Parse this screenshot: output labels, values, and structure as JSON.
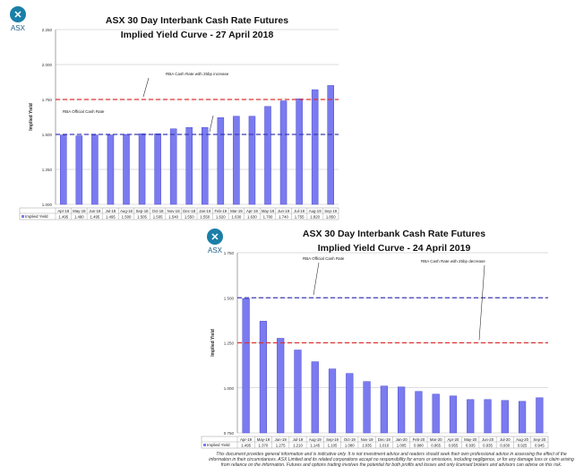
{
  "logo_text": "ASX",
  "colors": {
    "bar": "#7b7bf0",
    "bar_edge": "#4a4ad0",
    "official": "#3a3ab8",
    "alt": "#e03030"
  },
  "chart_data": [
    {
      "type": "bar",
      "title": "ASX 30 Day Interbank Cash Rate Futures",
      "subtitle": "Implied Yield Curve - 27 April 2018",
      "ylabel": "Implied Yield",
      "ylim": [
        1.0,
        2.25
      ],
      "yticks": [
        "1.000",
        "1.250",
        "1.500",
        "1.750",
        "2.000",
        "2.250"
      ],
      "legend": "Implied Yield",
      "categories": [
        "Apr-18",
        "May-18",
        "Jun-18",
        "Jul-18",
        "Aug-18",
        "Sep-18",
        "Oct-18",
        "Nov-18",
        "Dec-18",
        "Jan-19",
        "Feb-19",
        "Mar-19",
        "Apr-19",
        "May-19",
        "Jun-19",
        "Jul-19",
        "Aug-19",
        "Sep-19"
      ],
      "values": [
        1.495,
        1.49,
        1.495,
        1.495,
        1.5,
        1.505,
        1.505,
        1.54,
        1.55,
        1.55,
        1.62,
        1.63,
        1.63,
        1.7,
        1.74,
        1.755,
        1.82,
        1.85
      ],
      "labels": [
        "1.495",
        "1.490",
        "1.495",
        "1.495",
        "1.500",
        "1.505",
        "1.505",
        "1.540",
        "1.550",
        "1.550",
        "1.620",
        "1.630",
        "1.630",
        "1.700",
        "1.740",
        "1.755",
        "1.820",
        "1.850"
      ],
      "reference_lines": [
        {
          "name": "RBA Official Cash Rate",
          "value": 1.5,
          "color": "official"
        },
        {
          "name": "RBA Cash Rate with 25bp increase",
          "value": 1.75,
          "color": "alt"
        }
      ]
    },
    {
      "type": "bar",
      "title": "ASX 30 Day Interbank Cash Rate Futures",
      "subtitle": "Implied Yield Curve - 24 April 2019",
      "ylabel": "Implied Yield",
      "ylim": [
        0.75,
        1.75
      ],
      "yticks": [
        "0.750",
        "1.000",
        "1.250",
        "1.500",
        "1.750"
      ],
      "legend": "Implied Yield",
      "categories": [
        "Apr-19",
        "May-19",
        "Jun-19",
        "Jul-19",
        "Aug-19",
        "Sep-19",
        "Oct-19",
        "Nov-19",
        "Dec-19",
        "Jan-20",
        "Feb-20",
        "Mar-20",
        "Apr-20",
        "May-20",
        "Jun-20",
        "Jul-20",
        "Aug-20",
        "Sep-20"
      ],
      "values": [
        1.495,
        1.37,
        1.275,
        1.21,
        1.145,
        1.105,
        1.08,
        1.035,
        1.01,
        1.005,
        0.98,
        0.965,
        0.955,
        0.935,
        0.935,
        0.93,
        0.925,
        0.945
      ],
      "labels": [
        "1.495",
        "1.370",
        "1.275",
        "1.210",
        "1.145",
        "1.105",
        "1.080",
        "1.035",
        "1.010",
        "1.005",
        "0.980",
        "0.965",
        "0.955",
        "0.935",
        "0.935",
        "0.930",
        "0.925",
        "0.945"
      ],
      "reference_lines": [
        {
          "name": "RBA Official Cash Rate",
          "value": 1.5,
          "color": "official"
        },
        {
          "name": "RBA Cash Rate with 25bp decrease",
          "value": 1.25,
          "color": "alt"
        }
      ]
    }
  ],
  "disclaimer": "This document provides general information and is indicative only. It is not investment advice and readers should seek their own professional advice in assessing the effect of the information in their circumstances. ASX Limited and its related corporations accept no responsibility for errors or omissions, including negligence, or for any damage loss or claim arising from reliance on the information. Futures and options trading involves the potential for both profits and losses and only licensed brokers and advisors can advise on this risk."
}
